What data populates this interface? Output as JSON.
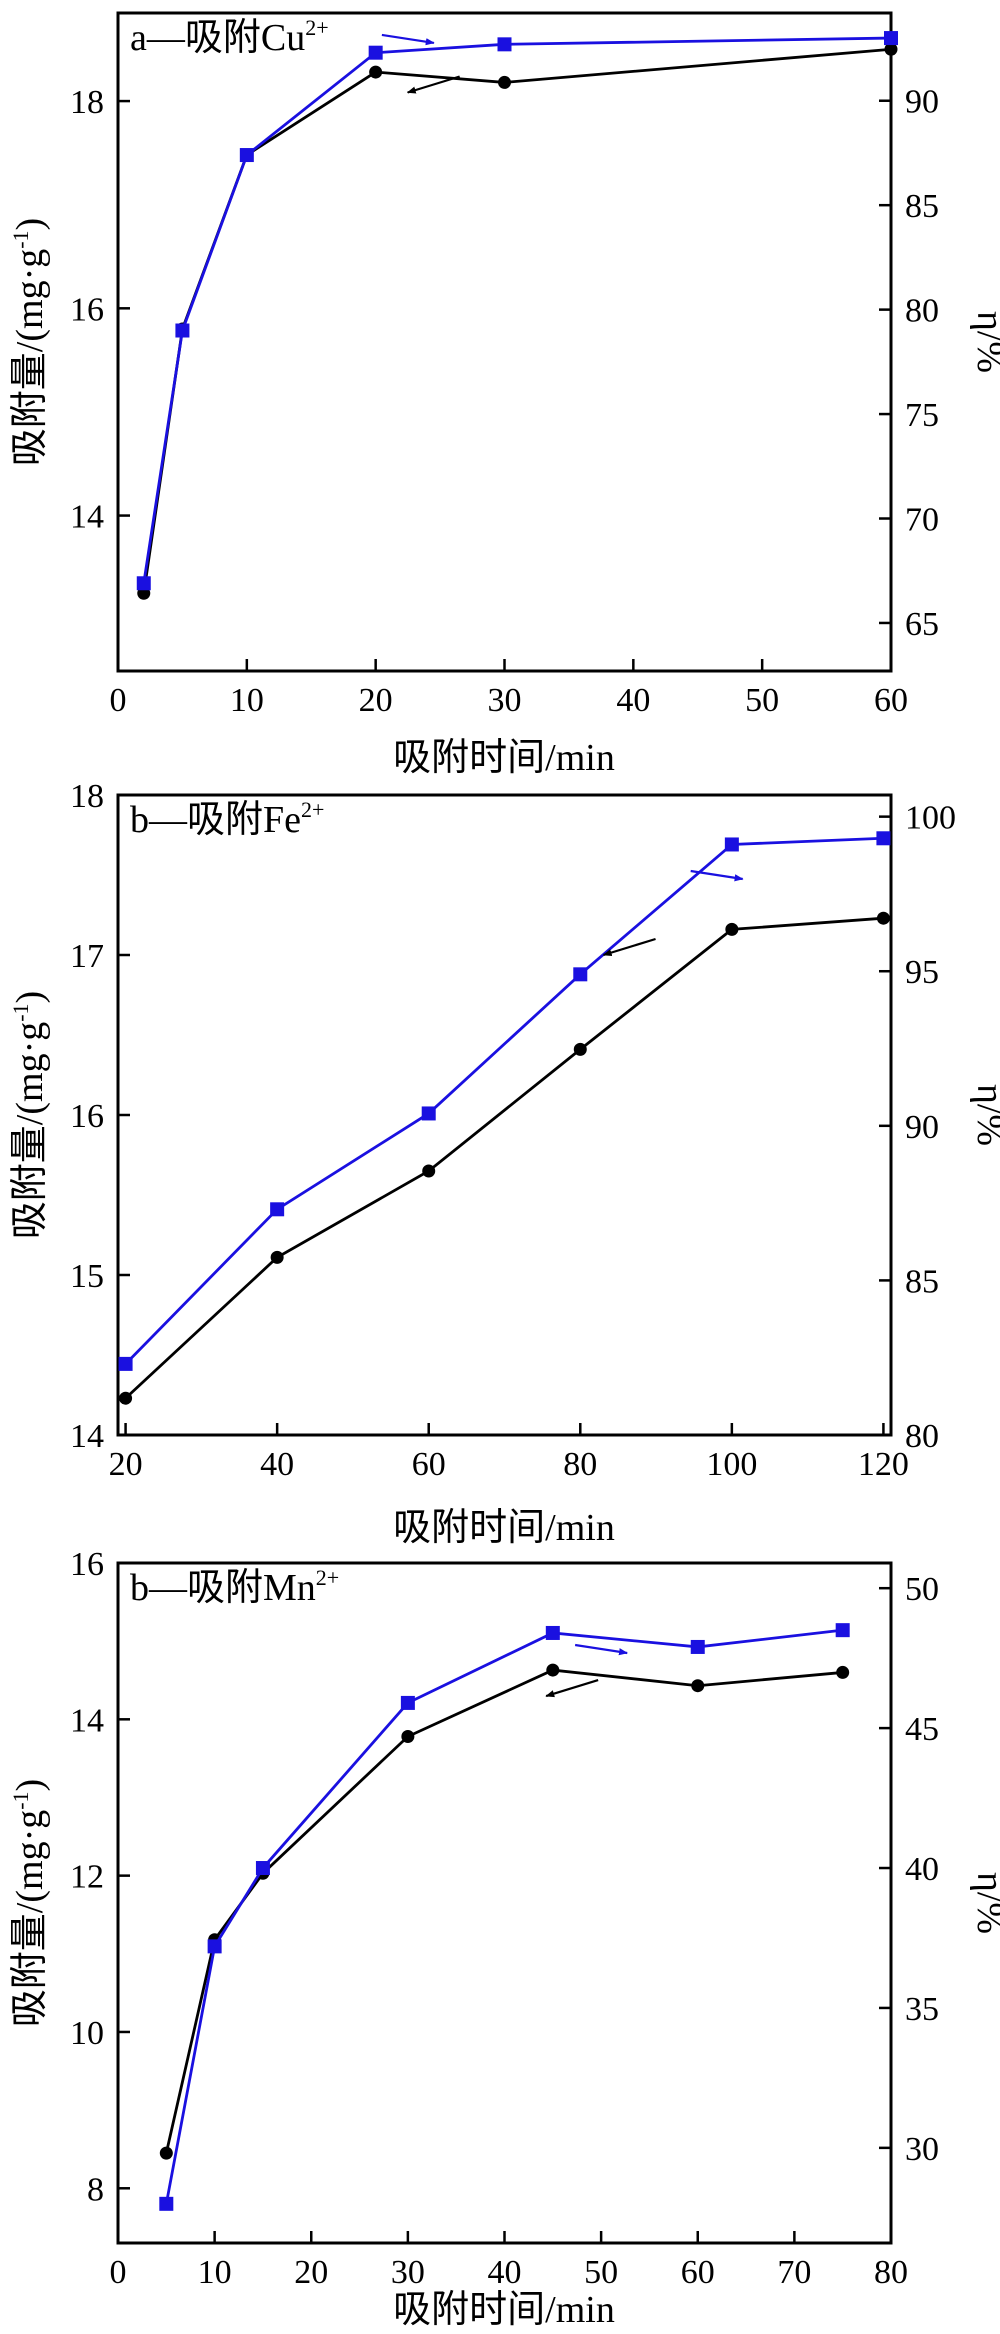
{
  "colors": {
    "adsorption": "#000000",
    "efficiency": "#1a10e0",
    "axes": "#000000"
  },
  "chart_data": [
    {
      "type": "line",
      "title": "a—吸附Cu",
      "title_sup": "2+",
      "xlabel": "吸附时间/min",
      "ylabel": "吸附量/(mg·g",
      "ylabel_sup": "-1",
      "ylabel_tail": ")",
      "y2label": "η/%",
      "xlim": [
        0,
        60
      ],
      "ylim": [
        12.5,
        18.85
      ],
      "y2lim": [
        62.7,
        94.2
      ],
      "xticks": [
        0,
        10,
        20,
        30,
        40,
        50,
        60
      ],
      "yticks": [
        14,
        16,
        18
      ],
      "y2ticks": [
        65,
        70,
        75,
        80,
        85,
        90
      ],
      "series": [
        {
          "axis": "left",
          "marker": "circle",
          "color": "#000000",
          "x": [
            2,
            5,
            10,
            20,
            30,
            60
          ],
          "y": [
            13.25,
            15.8,
            17.48,
            18.28,
            18.18,
            18.5
          ]
        },
        {
          "axis": "right",
          "marker": "square",
          "color": "#1a10e0",
          "x": [
            2,
            5,
            10,
            20,
            30,
            60
          ],
          "y": [
            66.9,
            79.0,
            87.4,
            92.3,
            92.7,
            93.0
          ]
        }
      ],
      "annotations": [
        {
          "points_to": "right",
          "x": 22.5,
          "y": 18.6
        },
        {
          "points_to": "left",
          "x": 24.5,
          "y": 18.16
        }
      ]
    },
    {
      "type": "line",
      "title": "b—吸附Fe",
      "title_sup": "2+",
      "xlabel": "吸附时间/min",
      "ylabel": "吸附量/(mg·g",
      "ylabel_sup": "-1",
      "ylabel_tail": ")",
      "y2label": "η/%",
      "xlim": [
        19,
        121
      ],
      "ylim": [
        14,
        18
      ],
      "y2lim": [
        80,
        100.7
      ],
      "xticks": [
        20,
        40,
        60,
        80,
        100,
        120
      ],
      "yticks": [
        14,
        15,
        16,
        17,
        18
      ],
      "y2ticks": [
        80,
        85,
        90,
        95,
        100
      ],
      "series": [
        {
          "axis": "left",
          "marker": "circle",
          "color": "#000000",
          "x": [
            20,
            40,
            60,
            80,
            100,
            120
          ],
          "y": [
            14.23,
            15.11,
            15.65,
            16.41,
            17.16,
            17.23
          ]
        },
        {
          "axis": "right",
          "marker": "square",
          "color": "#1a10e0",
          "x": [
            20,
            40,
            60,
            80,
            100,
            120
          ],
          "y": [
            82.3,
            87.3,
            90.4,
            94.9,
            99.1,
            99.3
          ]
        }
      ],
      "annotations": [
        {
          "points_to": "right",
          "x": 98,
          "y": 17.5
        },
        {
          "points_to": "left",
          "x": 86.5,
          "y": 17.05
        }
      ]
    },
    {
      "type": "line",
      "title": "b—吸附Mn",
      "title_sup": "2+",
      "xlabel": "吸附时间/min",
      "ylabel": "吸附量/(mg·g",
      "ylabel_sup": "-1",
      "ylabel_tail": ")",
      "y2label": "η/%",
      "xlim": [
        0,
        80
      ],
      "ylim": [
        7.3,
        16
      ],
      "y2lim": [
        26.6,
        50.9
      ],
      "xticks": [
        0,
        10,
        20,
        30,
        40,
        50,
        60,
        70,
        80
      ],
      "yticks": [
        8,
        10,
        12,
        14,
        16
      ],
      "y2ticks": [
        30,
        35,
        40,
        45,
        50
      ],
      "series": [
        {
          "axis": "left",
          "marker": "circle",
          "color": "#000000",
          "x": [
            5,
            10,
            15,
            30,
            45,
            60,
            75
          ],
          "y": [
            8.45,
            11.18,
            12.03,
            13.78,
            14.63,
            14.43,
            14.6
          ]
        },
        {
          "axis": "right",
          "marker": "square",
          "color": "#1a10e0",
          "x": [
            5,
            10,
            15,
            30,
            45,
            60,
            75
          ],
          "y": [
            28.0,
            37.2,
            40.0,
            45.9,
            48.4,
            47.9,
            48.5
          ]
        }
      ],
      "annotations": [
        {
          "points_to": "right",
          "x": 50,
          "y": 14.9
        },
        {
          "points_to": "left",
          "x": 47,
          "y": 14.4
        }
      ]
    }
  ]
}
